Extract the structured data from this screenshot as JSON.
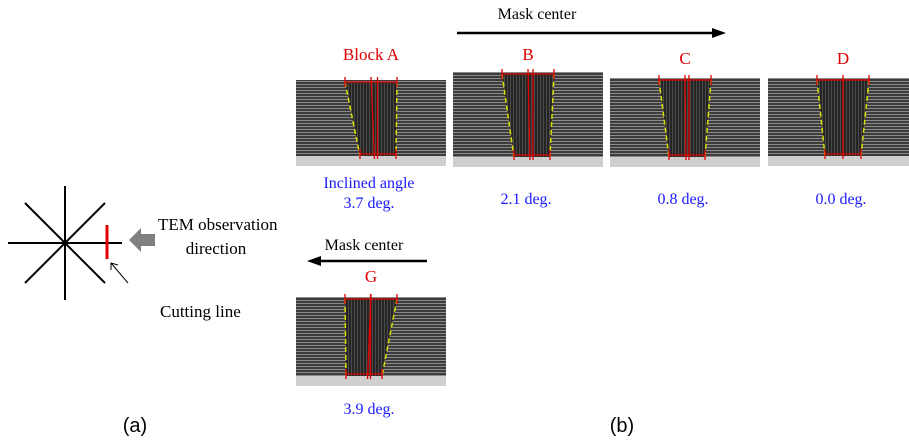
{
  "panel_a": {
    "observation_label": [
      "TEM observation",
      "direction"
    ],
    "cutting_line_label": "Cutting line",
    "caption": "(a)"
  },
  "panel_b": {
    "top_arrow_label": "Mask center",
    "bottom_arrow_label": "Mask center",
    "caption": "(b)",
    "blocks": [
      {
        "name": "Block A",
        "note": "Inclined angle",
        "angle": "3.7 deg."
      },
      {
        "name": "B",
        "angle": "2.1 deg."
      },
      {
        "name": "C",
        "angle": "0.8 deg."
      },
      {
        "name": "D",
        "angle": "0.0 deg."
      },
      {
        "name": "G",
        "angle": "3.9 deg."
      }
    ]
  }
}
